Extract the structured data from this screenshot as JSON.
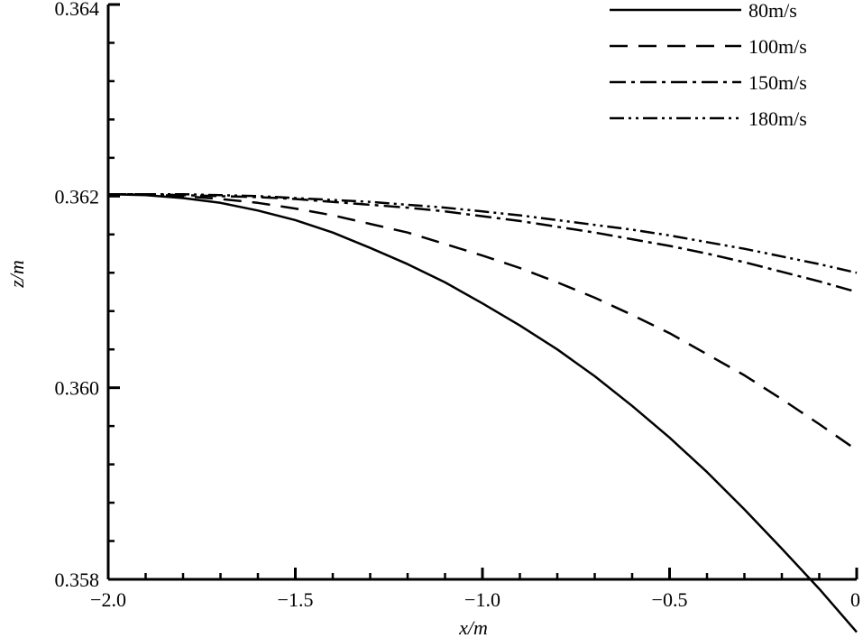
{
  "chart_data": {
    "type": "line",
    "xlabel": "x/m",
    "ylabel": "z/m",
    "xlim": [
      -2.0,
      0
    ],
    "ylim": [
      0.358,
      0.364
    ],
    "xticks": [
      -2.0,
      -1.5,
      -1.0,
      -0.5,
      0
    ],
    "xtick_labels": [
      "−2.0",
      "−1.5",
      "−1.0",
      "−0.5",
      "0"
    ],
    "yticks": [
      0.358,
      0.36,
      0.362,
      0.364
    ],
    "ytick_labels": [
      "0.358",
      "0.360",
      "0.362",
      "0.364"
    ],
    "grid": false,
    "legend_position": "top-right",
    "x": [
      -2.0,
      -1.9,
      -1.8,
      -1.7,
      -1.6,
      -1.5,
      -1.4,
      -1.3,
      -1.2,
      -1.1,
      -1.0,
      -0.9,
      -0.8,
      -0.7,
      -0.6,
      -0.5,
      -0.4,
      -0.3,
      -0.2,
      -0.1,
      0.0
    ],
    "series": [
      {
        "name": "80m/s",
        "style": "solid",
        "values": [
          0.36202,
          0.36201,
          0.36198,
          0.36193,
          0.36185,
          0.36175,
          0.36162,
          0.36146,
          0.36129,
          0.3611,
          0.36088,
          0.36065,
          0.3604,
          0.36012,
          0.35981,
          0.35948,
          0.35912,
          0.35873,
          0.35832,
          0.3579,
          0.35745
        ]
      },
      {
        "name": "100m/s",
        "style": "dashed",
        "values": [
          0.36202,
          0.36202,
          0.362,
          0.36197,
          0.36193,
          0.36187,
          0.3618,
          0.36171,
          0.36162,
          0.3615,
          0.36138,
          0.36125,
          0.3611,
          0.36094,
          0.36076,
          0.36057,
          0.36035,
          0.36013,
          0.35988,
          0.35962,
          0.35935
        ]
      },
      {
        "name": "150m/s",
        "style": "dashdot",
        "values": [
          0.36202,
          0.36202,
          0.36201,
          0.362,
          0.36199,
          0.36197,
          0.36194,
          0.36191,
          0.36188,
          0.36184,
          0.36179,
          0.36174,
          0.36168,
          0.36162,
          0.36155,
          0.36148,
          0.3614,
          0.36131,
          0.36121,
          0.36111,
          0.361
        ]
      },
      {
        "name": "180m/s",
        "style": "dashdotdot",
        "values": [
          0.36202,
          0.36202,
          0.36202,
          0.36201,
          0.362,
          0.36198,
          0.36196,
          0.36194,
          0.36191,
          0.36188,
          0.36184,
          0.3618,
          0.36175,
          0.3617,
          0.36165,
          0.36159,
          0.36152,
          0.36145,
          0.36137,
          0.36129,
          0.3612
        ]
      }
    ]
  }
}
